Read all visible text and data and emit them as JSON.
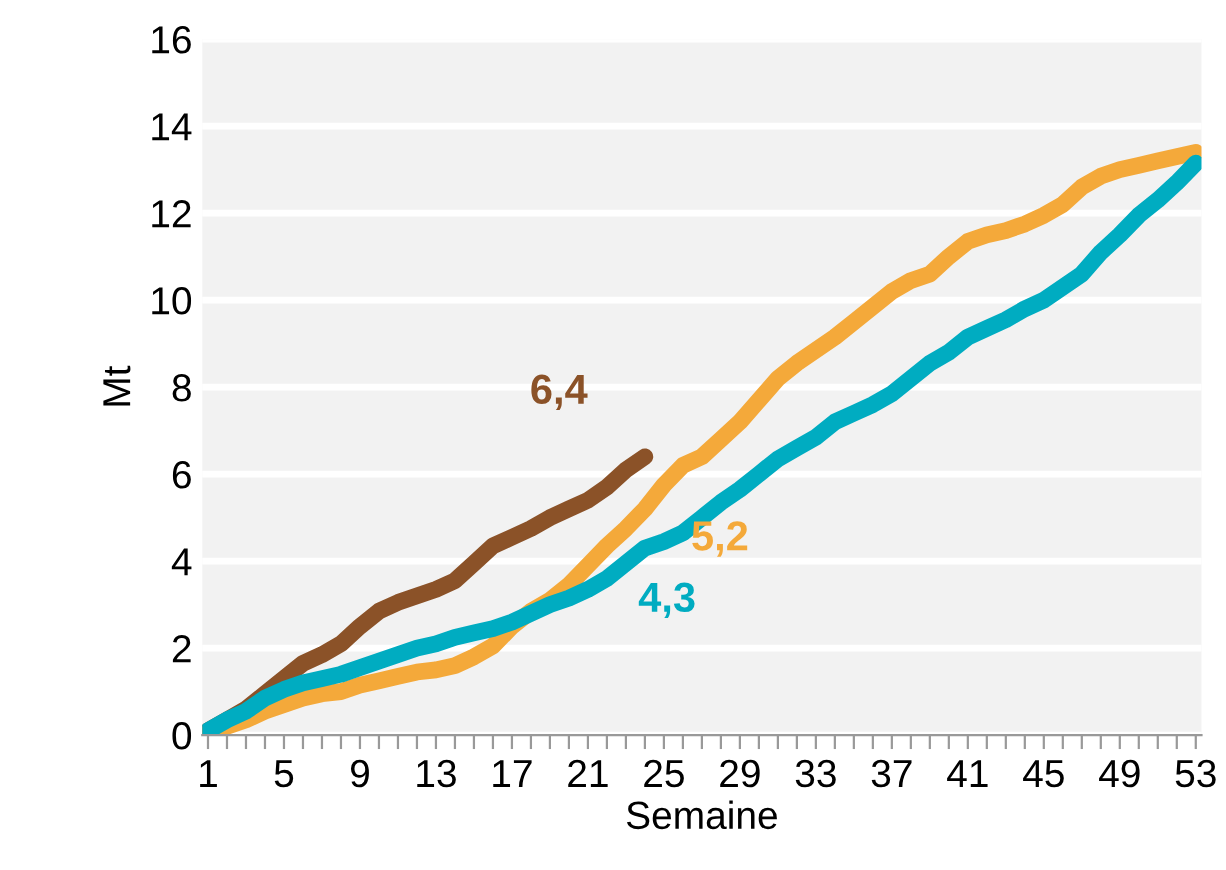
{
  "chart_data": {
    "type": "line",
    "xlabel": "Semaine",
    "ylabel": "Mt",
    "categories": [
      "1",
      null,
      null,
      null,
      "5",
      null,
      null,
      null,
      "9",
      null,
      null,
      null,
      "13",
      null,
      null,
      null,
      "17",
      null,
      null,
      null,
      "21",
      null,
      null,
      null,
      "25",
      null,
      null,
      null,
      "29",
      null,
      null,
      null,
      "33",
      null,
      null,
      null,
      "37",
      null,
      null,
      null,
      "41",
      null,
      null,
      null,
      "45",
      null,
      null,
      null,
      "49",
      null,
      null,
      null,
      "53"
    ],
    "series": [
      {
        "color": "#8b5228",
        "values": [
          0.1,
          0.35,
          0.6,
          0.95,
          1.3,
          1.65,
          1.85,
          2.1,
          2.5,
          2.85,
          3.05,
          3.2,
          3.35,
          3.55,
          3.95,
          4.35,
          4.55,
          4.75,
          5.0,
          5.2,
          5.4,
          5.7,
          6.1,
          6.4,
          null,
          null,
          null,
          null,
          null,
          null,
          null,
          null,
          null,
          null,
          null,
          null,
          null,
          null,
          null,
          null,
          null,
          null,
          null,
          null,
          null,
          null,
          null,
          null,
          null,
          null,
          null,
          null,
          null
        ],
        "value_labels": [
          null,
          null,
          null,
          null,
          null,
          null,
          null,
          null,
          null,
          null,
          null,
          null,
          null,
          null,
          null,
          null,
          null,
          null,
          null,
          null,
          null,
          null,
          null,
          "6,4",
          null,
          null,
          null,
          null,
          null,
          null,
          null,
          null,
          null,
          null,
          null,
          null,
          null,
          null,
          null,
          null,
          null,
          null,
          null,
          null,
          null,
          null,
          null,
          null,
          null,
          null,
          null,
          null,
          null
        ]
      },
      {
        "color": "#f4a93a",
        "values": [
          0.05,
          0.2,
          0.35,
          0.55,
          0.7,
          0.85,
          0.95,
          1.0,
          1.15,
          1.25,
          1.35,
          1.45,
          1.5,
          1.6,
          1.8,
          2.05,
          2.5,
          2.85,
          3.1,
          3.45,
          3.9,
          4.35,
          4.75,
          5.2,
          5.75,
          6.2,
          6.4,
          6.8,
          7.2,
          7.7,
          8.2,
          8.55,
          8.85,
          9.15,
          9.5,
          9.85,
          10.2,
          10.45,
          10.6,
          11.0,
          11.35,
          11.5,
          11.6,
          11.75,
          11.95,
          12.2,
          12.6,
          12.85,
          13.0,
          13.1,
          13.2,
          13.3,
          13.4
        ],
        "value_labels": [
          null,
          null,
          null,
          null,
          null,
          null,
          null,
          null,
          null,
          null,
          null,
          null,
          null,
          null,
          null,
          null,
          null,
          null,
          null,
          null,
          null,
          null,
          null,
          "5,2",
          null,
          null,
          null,
          null,
          null,
          null,
          null,
          null,
          null,
          null,
          null,
          null,
          null,
          null,
          null,
          null,
          null,
          null,
          null,
          null,
          null,
          null,
          null,
          null,
          null,
          null,
          null,
          null,
          null
        ]
      },
      {
        "color": "#00acc1",
        "values": [
          0.1,
          0.35,
          0.55,
          0.85,
          1.05,
          1.2,
          1.3,
          1.4,
          1.55,
          1.7,
          1.85,
          2.0,
          2.1,
          2.25,
          2.35,
          2.45,
          2.6,
          2.8,
          3.0,
          3.15,
          3.35,
          3.6,
          3.95,
          4.3,
          4.45,
          4.65,
          5.0,
          5.35,
          5.65,
          6.0,
          6.35,
          6.6,
          6.85,
          7.2,
          7.4,
          7.6,
          7.85,
          8.2,
          8.55,
          8.8,
          9.15,
          9.35,
          9.55,
          9.8,
          10.0,
          10.3,
          10.6,
          11.1,
          11.5,
          11.95,
          12.3,
          12.7,
          13.15
        ],
        "value_labels": [
          null,
          null,
          null,
          null,
          null,
          null,
          null,
          null,
          null,
          null,
          null,
          null,
          null,
          null,
          null,
          null,
          null,
          null,
          null,
          null,
          null,
          null,
          null,
          "4,3",
          null,
          null,
          null,
          null,
          null,
          null,
          null,
          null,
          null,
          null,
          null,
          null,
          null,
          null,
          null,
          null,
          null,
          null,
          null,
          null,
          null,
          null,
          null,
          null,
          null,
          null,
          null,
          null,
          null
        ]
      }
    ],
    "ylim": [
      0,
      16
    ],
    "yticks": [
      0,
      2,
      4,
      6,
      8,
      10,
      12,
      14,
      16
    ],
    "grid": "y",
    "legend": false,
    "marker": "none",
    "line_style": "solid"
  }
}
